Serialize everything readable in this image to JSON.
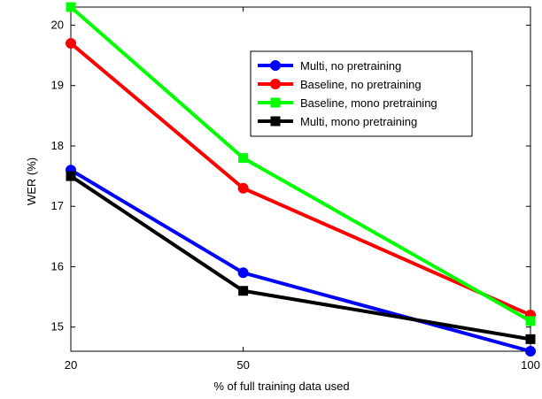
{
  "chart_data": {
    "type": "line",
    "title": "",
    "xlabel": "% of full training data used",
    "ylabel": "WER (%)",
    "x": [
      20,
      50,
      100
    ],
    "xlim": [
      20,
      100
    ],
    "ylim": [
      14.6,
      20.3
    ],
    "xticks": [
      "20",
      "50",
      "100"
    ],
    "yticks": [
      "15",
      "16",
      "17",
      "18",
      "19",
      "20"
    ],
    "grid": false,
    "legend_position": "top-right",
    "series": [
      {
        "name": "Multi, no pretraining",
        "color": "#0000ff",
        "marker": "circle",
        "values": [
          17.6,
          15.9,
          14.6
        ]
      },
      {
        "name": "Baseline, no pretraining",
        "color": "#ff0000",
        "marker": "circle",
        "values": [
          19.7,
          17.3,
          15.2
        ]
      },
      {
        "name": "Baseline, mono pretraining",
        "color": "#00ff00",
        "marker": "square",
        "values": [
          20.3,
          17.8,
          15.1
        ]
      },
      {
        "name": "Multi, mono pretraining",
        "color": "#000000",
        "marker": "square",
        "values": [
          17.5,
          15.6,
          14.8
        ]
      }
    ]
  }
}
